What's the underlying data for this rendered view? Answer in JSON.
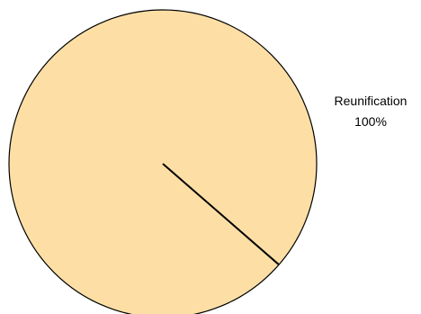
{
  "chart_data": {
    "type": "pie",
    "slices": [
      {
        "label": "Reunification",
        "value": 100,
        "display_percent": "100%",
        "color": "#fddfa5"
      }
    ],
    "outline_color": "#000000"
  }
}
